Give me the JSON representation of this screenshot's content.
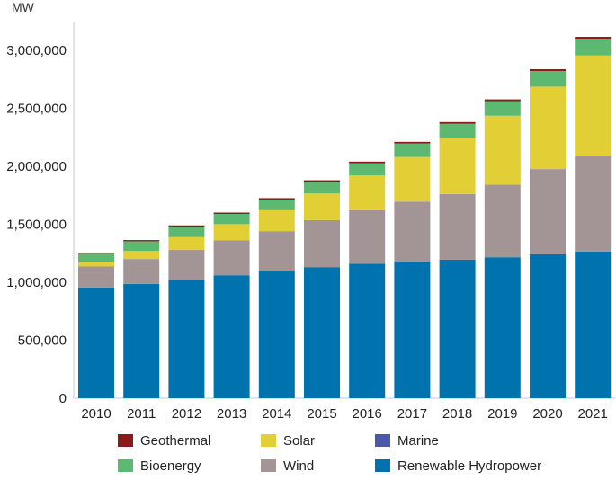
{
  "chart_data": {
    "type": "bar",
    "stacked": true,
    "title": "",
    "xlabel": "",
    "ylabel": "MW",
    "ylim": [
      0,
      3200000
    ],
    "yticks": [
      0,
      500000,
      1000000,
      1500000,
      2000000,
      2500000,
      3000000
    ],
    "ytick_labels": [
      "0",
      "500,000",
      "1,000,000",
      "1,500,000",
      "2,000,000",
      "2,500,000",
      "3,000,000"
    ],
    "categories": [
      "2010",
      "2011",
      "2012",
      "2013",
      "2014",
      "2015",
      "2016",
      "2017",
      "2018",
      "2019",
      "2020",
      "2021"
    ],
    "series": [
      {
        "name": "Renewable Hydropower",
        "color": "#0072ae",
        "values": [
          955000,
          985000,
          1018000,
          1060000,
          1095000,
          1130000,
          1160000,
          1180000,
          1195000,
          1215000,
          1240000,
          1265000
        ]
      },
      {
        "name": "Wind",
        "color": "#a39496",
        "values": [
          180000,
          215000,
          260000,
          300000,
          345000,
          405000,
          460000,
          515000,
          565000,
          625000,
          735000,
          820000
        ]
      },
      {
        "name": "Solar",
        "color": "#e1cf35",
        "values": [
          40000,
          70000,
          110000,
          140000,
          180000,
          230000,
          300000,
          385000,
          485000,
          595000,
          710000,
          870000
        ]
      },
      {
        "name": "Marine",
        "color": "#4a5aa8",
        "values": [
          500,
          500,
          500,
          500,
          500,
          500,
          500,
          500,
          500,
          500,
          500,
          500
        ]
      },
      {
        "name": "Bioenergy",
        "color": "#5db872",
        "values": [
          70000,
          82000,
          90000,
          88000,
          92000,
          100000,
          105000,
          115000,
          120000,
          125000,
          135000,
          143000
        ]
      },
      {
        "name": "Geothermal",
        "color": "#8b1a1a",
        "values": [
          10000,
          10500,
          11000,
          11500,
          12000,
          13000,
          13500,
          14000,
          14500,
          15000,
          15500,
          16000
        ]
      }
    ],
    "legend": {
      "position": "bottom",
      "columns": [
        [
          "Geothermal",
          "Bioenergy"
        ],
        [
          "Solar",
          "Wind"
        ],
        [
          "Marine",
          "Renewable Hydropower"
        ]
      ]
    }
  }
}
